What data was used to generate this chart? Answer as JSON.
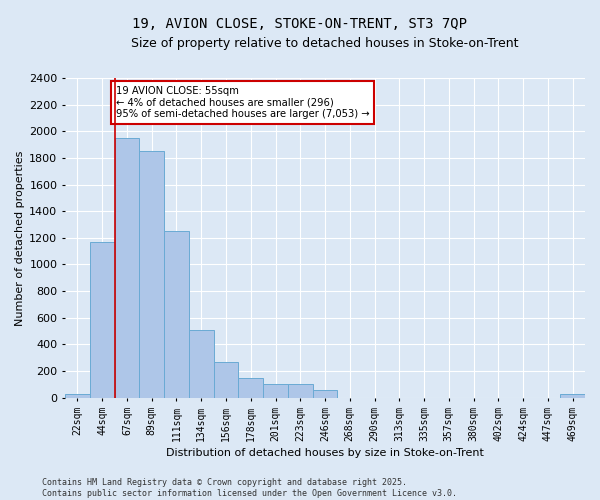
{
  "title": "19, AVION CLOSE, STOKE-ON-TRENT, ST3 7QP",
  "subtitle": "Size of property relative to detached houses in Stoke-on-Trent",
  "xlabel": "Distribution of detached houses by size in Stoke-on-Trent",
  "ylabel": "Number of detached properties",
  "categories": [
    "22sqm",
    "44sqm",
    "67sqm",
    "89sqm",
    "111sqm",
    "134sqm",
    "156sqm",
    "178sqm",
    "201sqm",
    "223sqm",
    "246sqm",
    "268sqm",
    "290sqm",
    "313sqm",
    "335sqm",
    "357sqm",
    "380sqm",
    "402sqm",
    "424sqm",
    "447sqm",
    "469sqm"
  ],
  "values": [
    30,
    1170,
    1950,
    1855,
    1250,
    510,
    270,
    150,
    100,
    100,
    55,
    0,
    0,
    0,
    0,
    0,
    0,
    0,
    0,
    0,
    30
  ],
  "bar_color": "#aec6e8",
  "bar_edge_color": "#6aaad4",
  "annotation_text": "19 AVION CLOSE: 55sqm\n← 4% of detached houses are smaller (296)\n95% of semi-detached houses are larger (7,053) →",
  "annotation_box_color": "#ffffff",
  "annotation_border_color": "#cc0000",
  "vline_color": "#cc0000",
  "vline_x": 1.5,
  "ylim": [
    0,
    2400
  ],
  "yticks": [
    0,
    200,
    400,
    600,
    800,
    1000,
    1200,
    1400,
    1600,
    1800,
    2000,
    2200,
    2400
  ],
  "footer_line1": "Contains HM Land Registry data © Crown copyright and database right 2025.",
  "footer_line2": "Contains public sector information licensed under the Open Government Licence v3.0.",
  "bg_color": "#dce8f5",
  "plot_bg_color": "#dce8f5",
  "title_fontsize": 10,
  "subtitle_fontsize": 9,
  "tick_fontsize": 7,
  "ylabel_fontsize": 8,
  "xlabel_fontsize": 8,
  "footer_fontsize": 6
}
